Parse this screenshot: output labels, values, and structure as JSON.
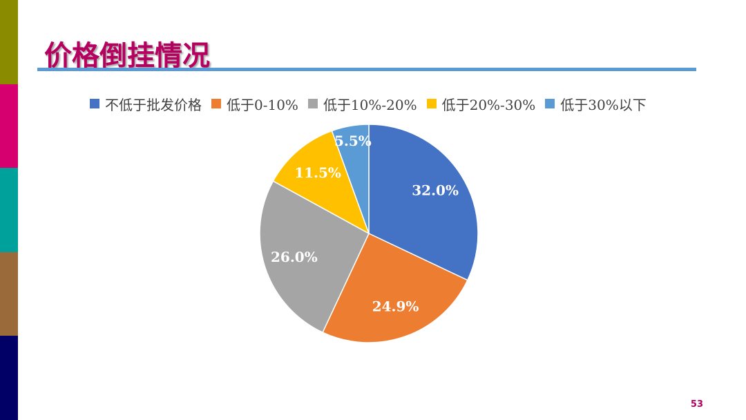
{
  "slide": {
    "title": "价格倒挂情况",
    "page_number": "53",
    "side_colors": [
      "#8B8B00",
      "#D6006E",
      "#00A19A",
      "#9A6A3A",
      "#000066"
    ],
    "rule_color": "#5B9BD5",
    "title_color": "#B5005F"
  },
  "chart_data": {
    "type": "pie",
    "title": "",
    "legend_position": "top",
    "start_angle_deg": 0,
    "direction": "clockwise",
    "slices": [
      {
        "label": "不低于批发价格",
        "value": 32.0,
        "value_label": "32.0%",
        "color": "#4472C4"
      },
      {
        "label": "低于0-10%",
        "value": 24.9,
        "value_label": "24.9%",
        "color": "#ED7D31"
      },
      {
        "label": "低于10%-20%",
        "value": 26.0,
        "value_label": "26.0%",
        "color": "#A5A5A5"
      },
      {
        "label": "低于20%-30%",
        "value": 11.5,
        "value_label": "11.5%",
        "color": "#FFC000"
      },
      {
        "label": "低于30%以下",
        "value": 5.5,
        "value_label": "5.5%",
        "color": "#5B9BD5"
      }
    ]
  }
}
